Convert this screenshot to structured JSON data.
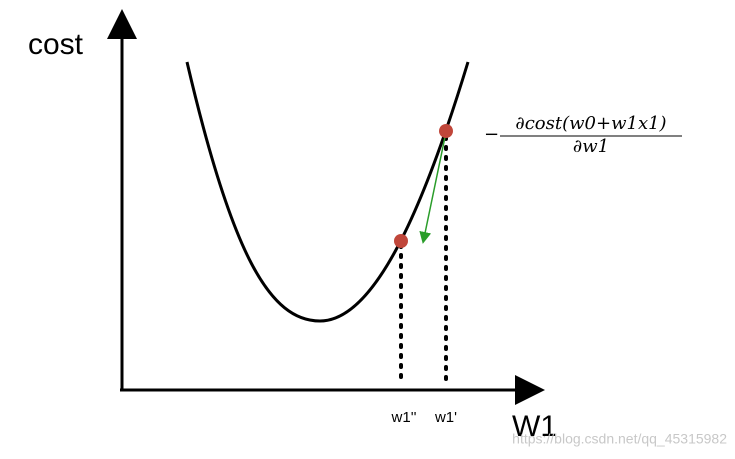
{
  "axes": {
    "y_label": "cost",
    "x_label": "W1"
  },
  "points": [
    {
      "label": "w1''"
    },
    {
      "label": "w1'"
    }
  ],
  "formula": {
    "sign": "−",
    "numerator": "∂cost(w0+w1x1)",
    "denominator": "∂w1"
  },
  "watermark": "https://blog.csdn.net/qq_45315982"
}
